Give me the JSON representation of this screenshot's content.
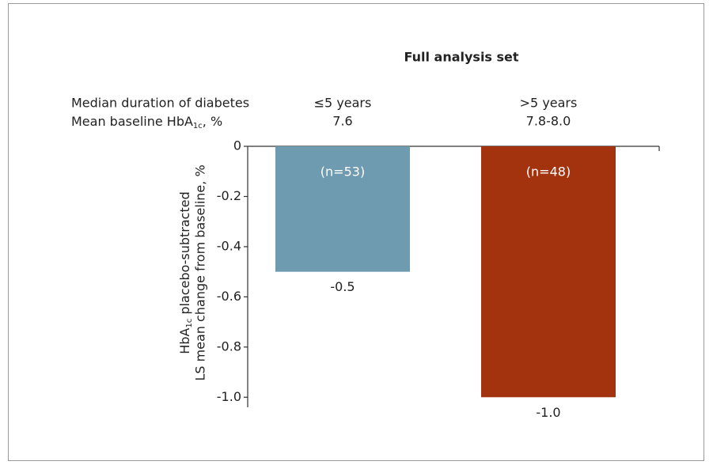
{
  "chart_data": {
    "type": "bar",
    "title": "Full analysis set",
    "row_labels": {
      "duration": "Median duration of diabetes",
      "baseline": [
        "Mean baseline HbA",
        "1c",
        ", %"
      ]
    },
    "categories": [
      "≤5 years",
      ">5 years"
    ],
    "baseline_values": [
      "7.6",
      "7.8-8.0"
    ],
    "series": [
      {
        "values": [
          -0.5,
          -1.0
        ],
        "value_labels": [
          "-0.5",
          "-1.0"
        ],
        "colors": [
          "#6f9bb0",
          "#a3320f"
        ],
        "n_labels": [
          "(n=53)",
          "(n=48)"
        ]
      }
    ],
    "y_label": {
      "line1": [
        "HbA",
        "1c",
        " placebo-subtracted"
      ],
      "line2": "LS mean change from baseline, %"
    },
    "ylim": [
      -1.04,
      0
    ],
    "yticks": [
      0,
      -0.2,
      -0.4,
      -0.6,
      -0.8,
      {
        "value": -1,
        "label": "-1.0"
      }
    ]
  }
}
